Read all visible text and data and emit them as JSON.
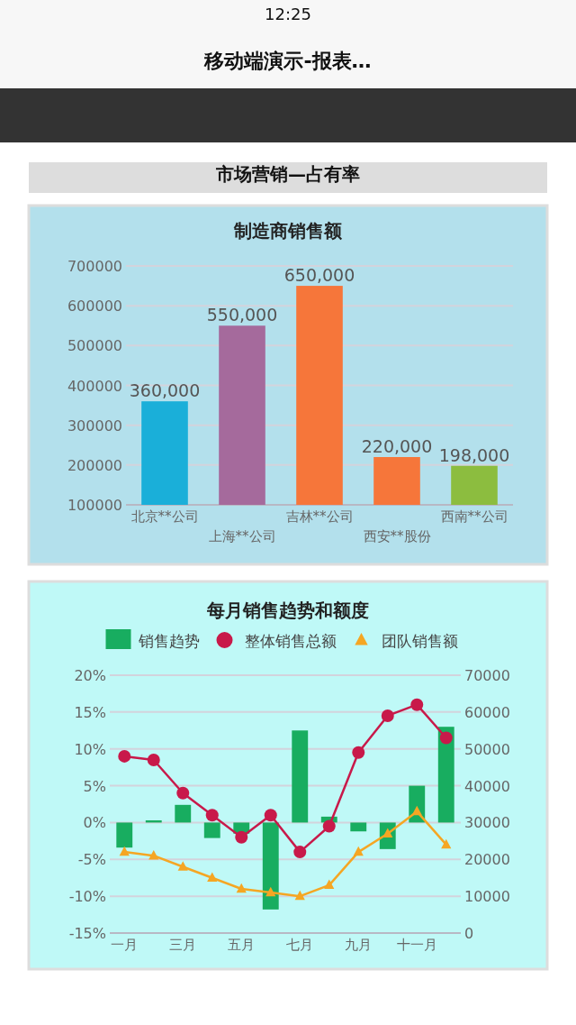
{
  "chart_data": [
    {
      "type": "bar",
      "title": "制造商销售额",
      "categories": [
        "北京**公司",
        "上海**公司",
        "吉林**公司",
        "西安**股份",
        "西南**公司"
      ],
      "values": [
        360000,
        550000,
        650000,
        220000,
        198000
      ],
      "colors": [
        "#1aafd9",
        "#a56a9c",
        "#f6763a",
        "#f6763a",
        "#8cbd3f"
      ],
      "value_labels": [
        "360,000",
        "550,000",
        "650,000",
        "220,000",
        "198,000"
      ],
      "ylim": [
        100000,
        700000
      ],
      "yticks": [
        100000,
        200000,
        300000,
        400000,
        500000,
        600000,
        700000
      ],
      "grid": "y",
      "annotations": [
        "12:25",
        "移动端演示-报表…",
        "市场营销—占有率"
      ]
    },
    {
      "type": "bar",
      "title": "每月销售趋势和额度",
      "categories": [
        "一月",
        null,
        "三月",
        null,
        "五月",
        null,
        "七月",
        null,
        "九月",
        null,
        "十一月",
        null
      ],
      "series": [
        {
          "name": "销售趋势",
          "color": "#18ad60",
          "values": [
            -3.4,
            0.3,
            2.4,
            -2.1,
            -1.5,
            -11.8,
            12.5,
            0.8,
            -1.2,
            -3.6,
            5,
            13
          ]
        },
        {
          "name": "整体销售总额",
          "type": "line",
          "axis": "y2",
          "color": "#c8194a",
          "marker": "circle",
          "values": [
            48000,
            47000,
            38000,
            32000,
            26000,
            32000,
            22000,
            29000,
            49000,
            59000,
            62000,
            53000
          ]
        },
        {
          "name": "团队销售额",
          "type": "line",
          "axis": "y2",
          "color": "#f5a623",
          "marker": "triangle",
          "values": [
            22000,
            21000,
            18000,
            15000,
            12000,
            11000,
            10000,
            13000,
            22000,
            27000,
            33000,
            24000
          ]
        }
      ],
      "ylim": [
        -15,
        20
      ],
      "yticks": [
        {
          "value": -15,
          "label": "-15%"
        },
        {
          "value": -10,
          "label": "-10%"
        },
        {
          "value": -5,
          "label": "-5%"
        },
        {
          "value": 0,
          "label": "0%"
        },
        {
          "value": 5,
          "label": "5%"
        },
        {
          "value": 10,
          "label": "10%"
        },
        {
          "value": 15,
          "label": "15%"
        },
        {
          "value": 20,
          "label": "20%"
        }
      ],
      "y2lim": [
        0,
        70000
      ],
      "y2ticks": [
        0,
        10000,
        20000,
        30000,
        40000,
        50000,
        60000,
        70000
      ],
      "grid": "y",
      "legend": "top"
    }
  ]
}
